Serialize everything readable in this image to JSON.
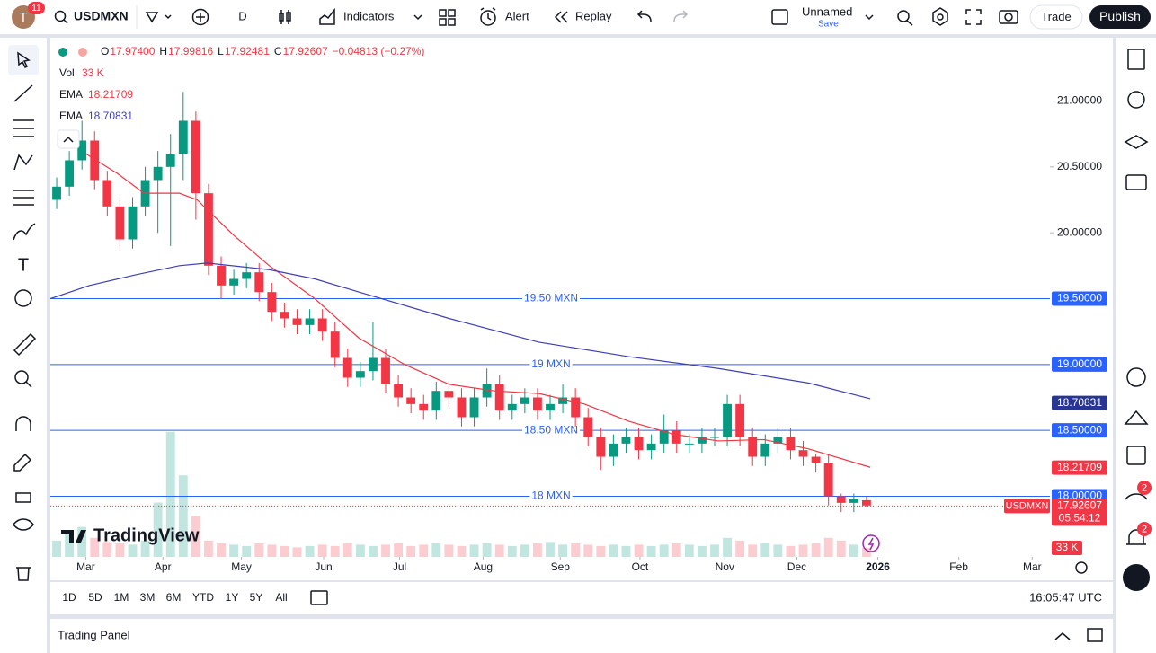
{
  "toolbar": {
    "avatar": "T",
    "notifications": "11",
    "symbol": "USDMXN",
    "interval": "D",
    "indicators": "Indicators",
    "alert": "Alert",
    "replay": "Replay",
    "layout_name": "Unnamed",
    "save": "Save",
    "trade": "Trade",
    "publish": "Publish"
  },
  "legend": {
    "ohlc": [
      {
        "key": "O",
        "value": "17.97400"
      },
      {
        "key": "H",
        "value": "17.99816"
      },
      {
        "key": "L",
        "value": "17.92481"
      },
      {
        "key": "C",
        "value": "17.92607"
      }
    ],
    "change": "−0.04813 (−0.27%)",
    "volume_label": "Vol",
    "volume": "33 K",
    "ema": [
      {
        "name": "EMA",
        "value": "18.21709"
      },
      {
        "name": "EMA",
        "value": "18.70831"
      }
    ]
  },
  "chart_data": {
    "type": "candlestick",
    "xlim": [
      0,
      79
    ],
    "xticks": [
      {
        "value": 2.8,
        "label": "Mar"
      },
      {
        "value": 8.9,
        "label": "Apr"
      },
      {
        "value": 15.1,
        "label": "May"
      },
      {
        "value": 21.6,
        "label": "Jun"
      },
      {
        "value": 27.6,
        "label": "Jul"
      },
      {
        "value": 34.2,
        "label": "Aug"
      },
      {
        "value": 40.3,
        "label": "Sep"
      },
      {
        "value": 46.6,
        "label": "Oct"
      },
      {
        "value": 53.3,
        "label": "Nov"
      },
      {
        "value": 59.0,
        "label": "Dec"
      },
      {
        "value": 65.4,
        "label": "2026"
      },
      {
        "value": 71.8,
        "label": "Feb"
      },
      {
        "value": 77.6,
        "label": "Mar"
      }
    ],
    "ylim": [
      17.54,
      21.46
    ],
    "yticks": [
      {
        "value": 21,
        "label": "21.00000"
      },
      {
        "value": 20.5,
        "label": "20.50000"
      },
      {
        "value": 20,
        "label": "20.00000"
      }
    ],
    "up_color": "#089981",
    "down_color": "#f23645",
    "open": [
      20.25,
      20.35,
      20.55,
      20.7,
      20.4,
      20.2,
      19.95,
      20.2,
      20.4,
      20.5,
      20.6,
      20.85,
      20.3,
      19.75,
      19.6,
      19.65,
      19.7,
      19.55,
      19.4,
      19.35,
      19.3,
      19.35,
      19.25,
      19.05,
      18.9,
      18.95,
      19.05,
      18.85,
      18.75,
      18.7,
      18.65,
      18.8,
      18.75,
      18.6,
      18.75,
      18.85,
      18.65,
      18.7,
      18.75,
      18.65,
      18.7,
      18.75,
      18.6,
      18.45,
      18.3,
      18.4,
      18.45,
      18.35,
      18.4,
      18.5,
      18.4,
      18.4,
      18.45,
      18.45,
      18.7,
      18.45,
      18.3,
      18.4,
      18.45,
      18.35,
      18.3,
      18.25,
      18.0,
      17.95,
      17.97
    ],
    "high": [
      20.42,
      20.62,
      20.85,
      20.77,
      20.47,
      20.27,
      20.27,
      20.5,
      20.62,
      20.75,
      21.07,
      20.92,
      20.37,
      19.82,
      19.72,
      19.77,
      19.77,
      19.62,
      19.47,
      19.42,
      19.42,
      19.42,
      19.32,
      19.12,
      19.02,
      19.32,
      19.12,
      18.92,
      18.82,
      18.77,
      18.87,
      18.87,
      18.82,
      18.82,
      18.97,
      18.92,
      18.77,
      18.82,
      18.82,
      18.77,
      18.85,
      18.82,
      18.67,
      18.52,
      18.47,
      18.52,
      18.52,
      18.47,
      18.62,
      18.57,
      18.47,
      18.52,
      18.52,
      18.77,
      18.77,
      18.52,
      18.47,
      18.52,
      18.52,
      18.42,
      18.32,
      18.32,
      18.02,
      18.02,
      18.0
    ],
    "low": [
      20.18,
      20.28,
      20.48,
      20.33,
      20.13,
      19.88,
      19.88,
      20.13,
      20.0,
      19.9,
      20.4,
      20.1,
      19.68,
      19.5,
      19.53,
      19.58,
      19.48,
      19.33,
      19.28,
      19.23,
      19.23,
      19.18,
      18.98,
      18.83,
      18.83,
      18.88,
      18.78,
      18.68,
      18.63,
      18.58,
      18.58,
      18.68,
      18.53,
      18.53,
      18.68,
      18.58,
      18.58,
      18.63,
      18.58,
      18.58,
      18.63,
      18.53,
      18.38,
      18.2,
      18.23,
      18.33,
      18.28,
      18.28,
      18.33,
      18.33,
      18.33,
      18.33,
      18.38,
      18.38,
      18.38,
      18.23,
      18.23,
      18.33,
      18.28,
      18.23,
      18.18,
      17.93,
      17.88,
      17.88,
      17.92
    ],
    "close": [
      20.35,
      20.55,
      20.7,
      20.4,
      20.2,
      19.95,
      20.2,
      20.4,
      20.5,
      20.6,
      20.85,
      20.3,
      19.75,
      19.6,
      19.65,
      19.7,
      19.55,
      19.4,
      19.35,
      19.3,
      19.35,
      19.25,
      19.05,
      18.9,
      18.95,
      19.05,
      18.85,
      18.75,
      18.7,
      18.65,
      18.8,
      18.75,
      18.6,
      18.75,
      18.85,
      18.65,
      18.7,
      18.75,
      18.65,
      18.7,
      18.75,
      18.6,
      18.45,
      18.3,
      18.4,
      18.45,
      18.35,
      18.4,
      18.5,
      18.4,
      18.4,
      18.45,
      18.45,
      18.7,
      18.45,
      18.3,
      18.4,
      18.45,
      18.35,
      18.3,
      18.25,
      18.0,
      17.95,
      17.98,
      17.93
    ],
    "volume": [
      60,
      90,
      110,
      70,
      55,
      50,
      45,
      60,
      200,
      460,
      300,
      150,
      60,
      50,
      45,
      40,
      50,
      45,
      40,
      35,
      40,
      45,
      40,
      50,
      45,
      40,
      45,
      50,
      40,
      45,
      50,
      45,
      40,
      45,
      50,
      45,
      40,
      45,
      50,
      55,
      45,
      50,
      45,
      40,
      45,
      40,
      45,
      40,
      45,
      50,
      45,
      40,
      45,
      70,
      60,
      45,
      50,
      45,
      40,
      45,
      50,
      70,
      60,
      45,
      33
    ],
    "volume_ylim": [
      0,
      1900
    ],
    "series": [
      {
        "name": "EMA",
        "color": "#f23645",
        "x": [
          2.8,
          5.3,
          7.4,
          10.2,
          11.6,
          14.5,
          17.3,
          20.9,
          24.4,
          28.0,
          31.5,
          35.1,
          38.6,
          42.2,
          45.7,
          49.3,
          52.8,
          56.4,
          59.9,
          64.8
        ],
        "values": [
          20.6,
          20.45,
          20.3,
          20.3,
          20.25,
          19.98,
          19.75,
          19.5,
          19.2,
          19.0,
          18.85,
          18.8,
          18.78,
          18.7,
          18.57,
          18.47,
          18.42,
          18.43,
          18.36,
          18.22
        ]
      },
      {
        "name": "EMA",
        "color": "#3f3fb5",
        "x": [
          0,
          3.1,
          6.7,
          10.2,
          12.4,
          17.3,
          20.9,
          24.4,
          31.5,
          38.6,
          45.7,
          52.8,
          59.9,
          64.8
        ],
        "values": [
          19.5,
          19.6,
          19.68,
          19.75,
          19.77,
          19.72,
          19.65,
          19.55,
          19.35,
          19.17,
          19.06,
          18.97,
          18.86,
          18.74
        ]
      }
    ],
    "levels": [
      {
        "value": 19.5,
        "label": "19.50 MXN",
        "axis_label": "19.50000"
      },
      {
        "value": 19,
        "label": "19 MXN",
        "axis_label": "19.00000"
      },
      {
        "value": 18.5,
        "label": "18.50 MXN",
        "axis_label": "18.50000"
      },
      {
        "value": 18,
        "label": "18 MXN",
        "axis_label": "18.00000"
      }
    ],
    "price_tags": [
      {
        "value": 18.70831,
        "label": "18.70831",
        "color": "#283593"
      },
      {
        "value": 18.21709,
        "label": "18.21709",
        "color": "#f23645"
      }
    ],
    "last_price": {
      "value": 17.92607,
      "label": "17.92607",
      "symbol": "USDMXN",
      "countdown": "05:54:12",
      "color": "#f23645"
    },
    "volume_tag": "33 K",
    "watermark": "TradingView"
  },
  "range_buttons": [
    "1D",
    "5D",
    "1M",
    "3M",
    "6M",
    "YTD",
    "1Y",
    "5Y",
    "All"
  ],
  "clock": "16:05:47 UTC",
  "trading_panel": "Trading Panel",
  "badges": [
    "2",
    "2"
  ]
}
